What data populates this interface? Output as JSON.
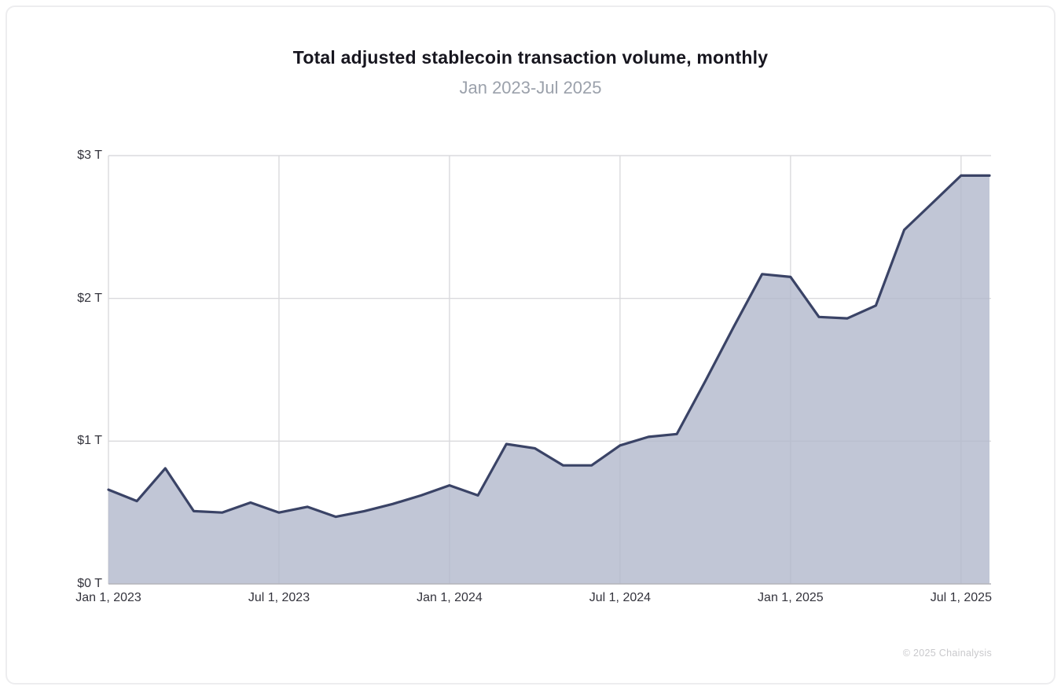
{
  "header": {
    "title": "Total adjusted stablecoin transaction volume, monthly",
    "subtitle": "Jan 2023-Jul 2025"
  },
  "footer": {
    "copyright": "© 2025 Chainalysis"
  },
  "chart_data": {
    "type": "area",
    "title": "Total adjusted stablecoin transaction volume, monthly",
    "subtitle": "Jan 2023-Jul 2025",
    "unit": "USD trillions",
    "x": [
      "Jan 2023",
      "Feb 2023",
      "Mar 2023",
      "Apr 2023",
      "May 2023",
      "Jun 2023",
      "Jul 2023",
      "Aug 2023",
      "Sep 2023",
      "Oct 2023",
      "Nov 2023",
      "Dec 2023",
      "Jan 2024",
      "Feb 2024",
      "Mar 2024",
      "Apr 2024",
      "May 2024",
      "Jun 2024",
      "Jul 2024",
      "Aug 2024",
      "Sep 2024",
      "Oct 2024",
      "Nov 2024",
      "Dec 2024",
      "Jan 2025",
      "Feb 2025",
      "Mar 2025",
      "Apr 2025",
      "May 2025",
      "Jun 2025",
      "Jul 2025"
    ],
    "values": [
      0.66,
      0.58,
      0.81,
      0.51,
      0.5,
      0.57,
      0.5,
      0.54,
      0.47,
      0.51,
      0.56,
      0.62,
      0.69,
      0.62,
      0.98,
      0.95,
      0.83,
      0.83,
      0.97,
      1.03,
      1.05,
      1.42,
      1.8,
      2.17,
      2.15,
      1.87,
      1.86,
      1.95,
      2.48,
      2.67,
      2.86
    ],
    "x_ticks": [
      "Jan 1, 2023",
      "Jul 1, 2023",
      "Jan 1, 2024",
      "Jul 1, 2024",
      "Jan 1, 2025",
      "Jul 1, 2025"
    ],
    "x_tick_month_indices": [
      0,
      6,
      12,
      18,
      24,
      30
    ],
    "y_ticks": [
      "$0 T",
      "$1 T",
      "$2 T",
      "$3 T"
    ],
    "y_tick_values": [
      0,
      1,
      2,
      3
    ],
    "ylim": [
      0,
      3
    ],
    "grid": true,
    "legend": false,
    "extend_last_value_to_right_edge": true,
    "line_color": "#3a4366",
    "fill_color": "#c1c6d6",
    "grid_color": "#dadadd",
    "axis_color": "#b4b4ba"
  }
}
